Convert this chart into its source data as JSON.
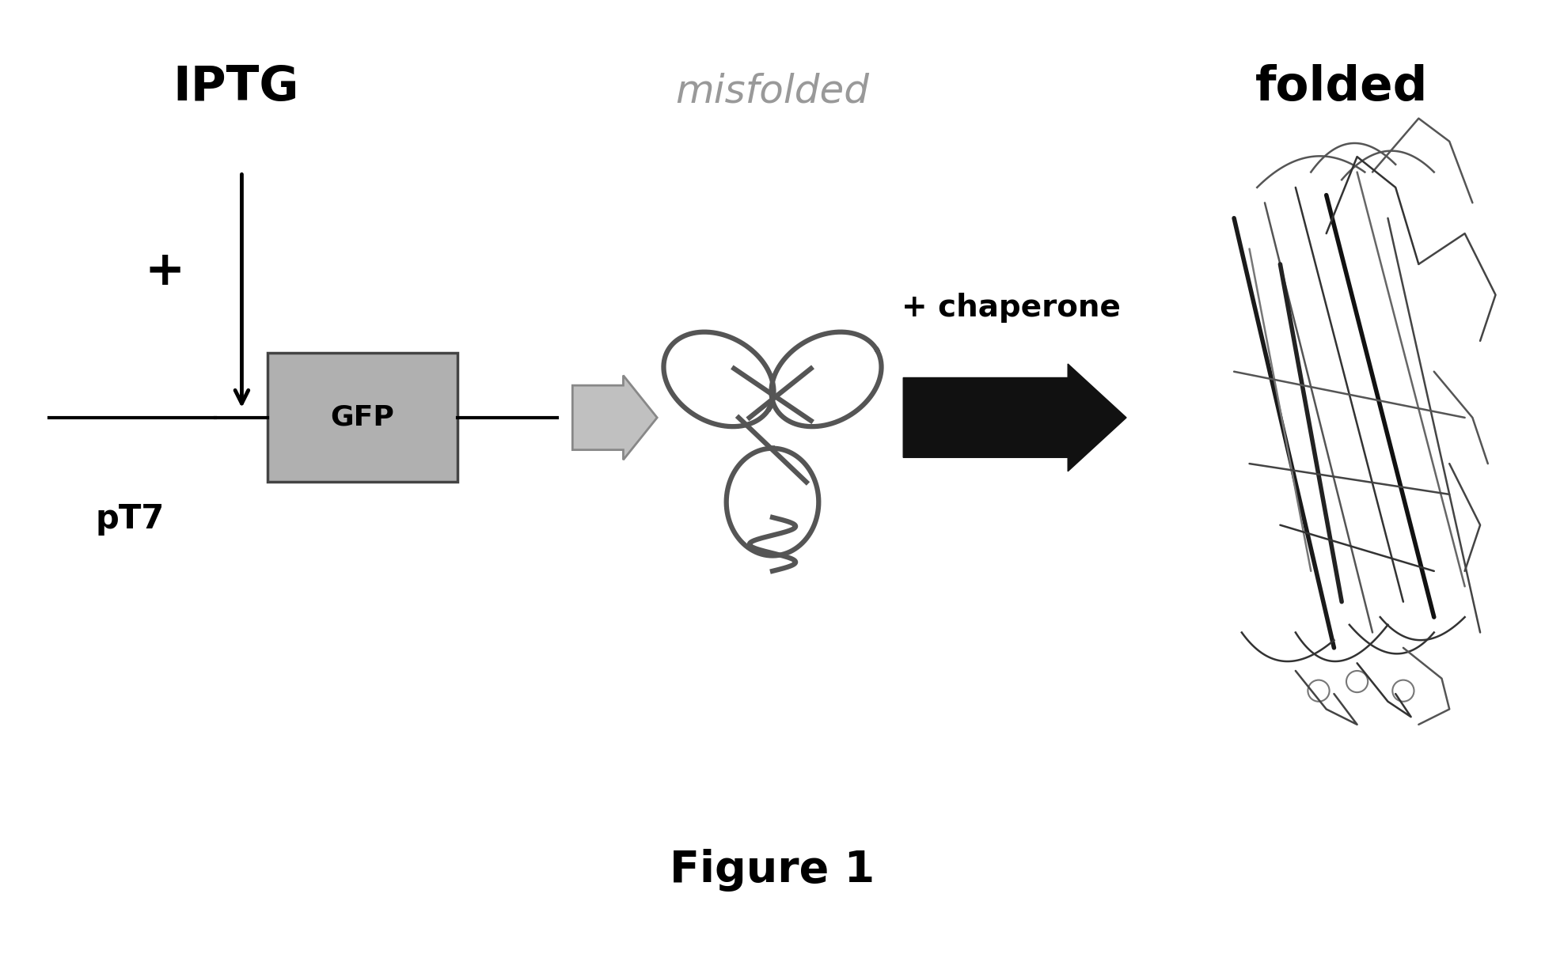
{
  "background_color": "#ffffff",
  "fig_width": 19.52,
  "fig_height": 12.11,
  "iptg_label": "IPTG",
  "misfolded_label": "misfolded",
  "folded_label": "folded",
  "gfp_label": "GFP",
  "pt7_label": "pT7",
  "plus_label": "+",
  "chaperone_label": "+ chaperone",
  "figure_label": "Figure 1",
  "colors": {
    "black": "#000000",
    "dark_gray": "#333333",
    "mid_gray": "#777777",
    "light_gray": "#aaaaaa",
    "gfp_fill": "#b0b0b0",
    "gfp_edge": "#444444",
    "arrow1_fill": "#c0c0c0",
    "arrow1_edge": "#888888",
    "arrow2_fill": "#111111",
    "arrow2_edge": "#111111",
    "misfolded_text": "#999999",
    "misfolded_line": "#555555",
    "folded_line": "#333333"
  }
}
